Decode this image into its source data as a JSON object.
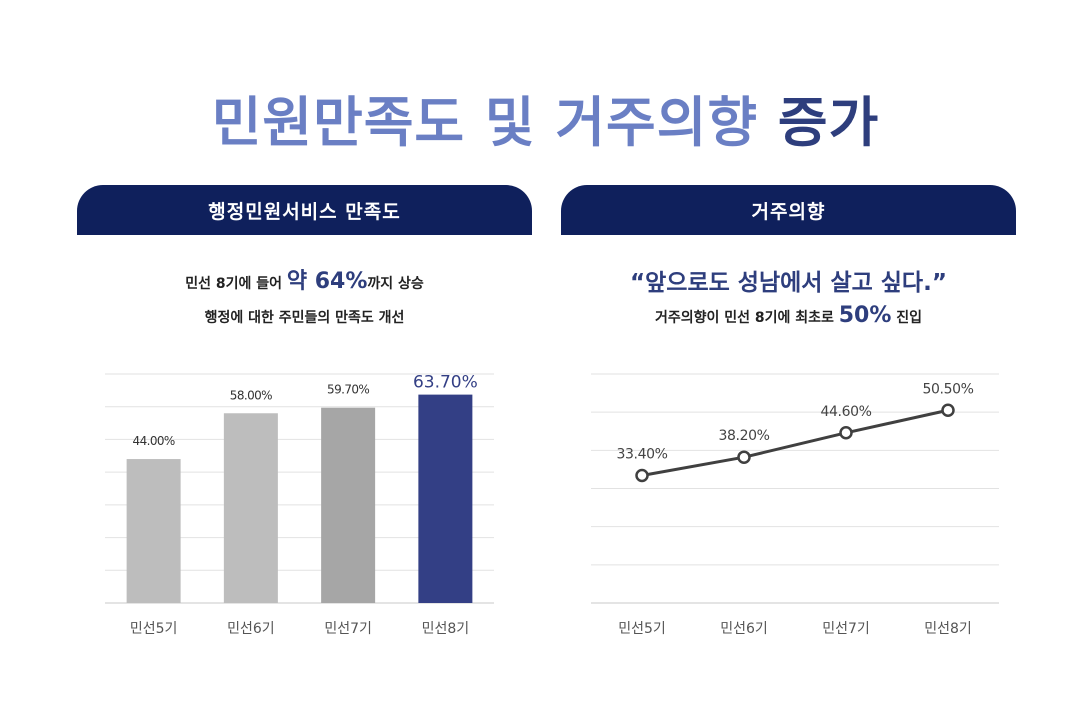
{
  "title": {
    "main": "민원만족도 및 거주의향",
    "accent": "증가"
  },
  "left": {
    "header": "행정민원서비스 만족도",
    "line1": {
      "pre": "민선 8기에 들어 ",
      "emph": "약 64%",
      "post": "까지 상승"
    },
    "line2": "행정에 대한 주민들의 만족도 개선"
  },
  "right": {
    "header": "거주의향",
    "quote": "“앞으로도 성남에서 살고 싶다.”",
    "line": {
      "pre": "거주의향이 민선 8기에 최초로 ",
      "emph": "50%",
      "post": " 진입"
    }
  },
  "chart_data": [
    {
      "type": "bar",
      "categories": [
        "민선5기",
        "민선6기",
        "민선7기",
        "민선8기"
      ],
      "values": [
        44.0,
        58.0,
        59.7,
        63.7
      ],
      "labels": [
        "44.00%",
        "58.00%",
        "59.70%",
        "63.70%"
      ],
      "ylim": [
        0,
        70
      ],
      "grid": true,
      "colors": [
        "#bdbdbd",
        "#bdbdbd",
        "#a6a6a6",
        "#333f85"
      ],
      "highlight_label_color": "#333f85"
    },
    {
      "type": "line",
      "categories": [
        "민선5기",
        "민선6기",
        "민선7기",
        "민선8기"
      ],
      "values": [
        33.4,
        38.2,
        44.6,
        50.5
      ],
      "labels": [
        "33.40%",
        "38.20%",
        "44.60%",
        "50.50%"
      ],
      "ylim": [
        0,
        60
      ],
      "grid": true,
      "line_color": "#404040"
    }
  ]
}
